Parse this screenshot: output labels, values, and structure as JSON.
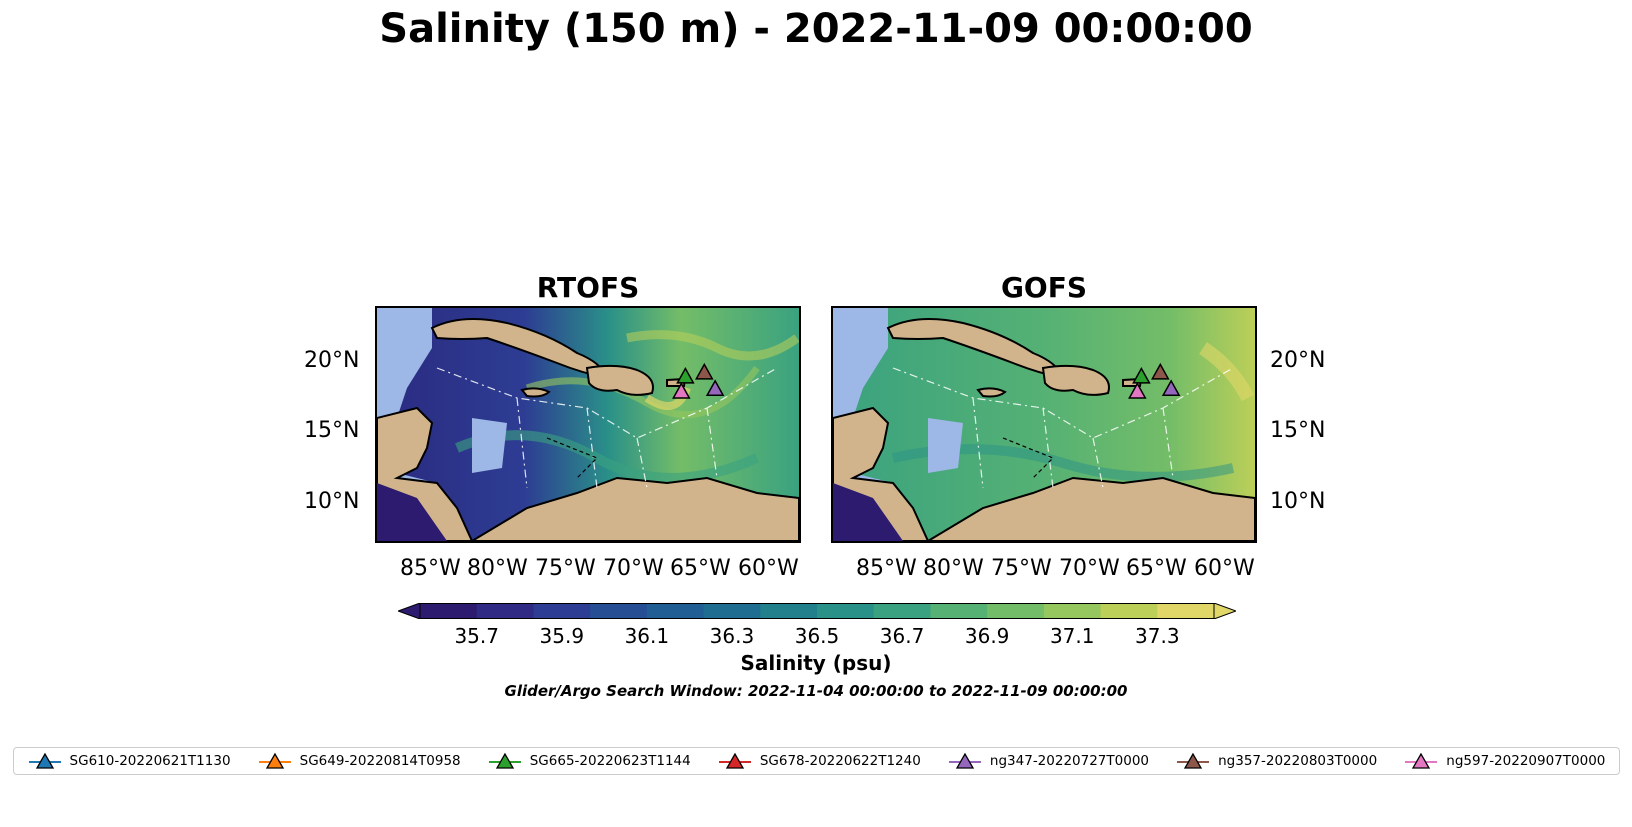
{
  "title": "Salinity (150 m) - 2022-11-09 00:00:00",
  "panels": [
    {
      "title": "RTOFS"
    },
    {
      "title": "GOFS"
    }
  ],
  "lat_labels": [
    "20°N",
    "15°N",
    "10°N"
  ],
  "lon_labels": [
    "85°W",
    "80°W",
    "75°W",
    "70°W",
    "65°W",
    "60°W"
  ],
  "colorbar": {
    "label": "Salinity (psu)",
    "ticks": [
      "35.7",
      "35.9",
      "36.1",
      "36.3",
      "36.5",
      "36.7",
      "36.9",
      "37.1",
      "37.3"
    ],
    "colors": [
      "#2c1b6e",
      "#312a85",
      "#2d3d93",
      "#264e95",
      "#215e94",
      "#1f6e92",
      "#22808d",
      "#2a9188",
      "#3aa280",
      "#55b174",
      "#74bd68",
      "#96c65e",
      "#bccf58",
      "#e0d768"
    ]
  },
  "search_window": "Glider/Argo Search Window: 2022-11-04 00:00:00 to 2022-11-09 00:00:00",
  "legend": [
    {
      "label": "SG610-20220621T1130",
      "color": "#1f77b4"
    },
    {
      "label": "SG649-20220814T0958",
      "color": "#ff7f0e"
    },
    {
      "label": "SG665-20220623T1144",
      "color": "#2ca02c"
    },
    {
      "label": "SG678-20220622T1240",
      "color": "#d62728"
    },
    {
      "label": "ng347-20220727T0000",
      "color": "#9467bd"
    },
    {
      "label": "ng357-20220803T0000",
      "color": "#8c564b"
    },
    {
      "label": "ng597-20220907T0000",
      "color": "#e377c2"
    }
  ],
  "markers": [
    {
      "name": "SG665",
      "lon": -66.2,
      "lat": 19.0,
      "color": "#2ca02c"
    },
    {
      "name": "ng357",
      "lon": -64.8,
      "lat": 19.3,
      "color": "#8c564b"
    },
    {
      "name": "ng347",
      "lon": -64.0,
      "lat": 18.1,
      "color": "#9467bd"
    },
    {
      "name": "ng597",
      "lon": -66.5,
      "lat": 17.9,
      "color": "#e377c2"
    }
  ],
  "map_extent": {
    "lon_min": -89,
    "lon_max": -57.8,
    "lat_min": 7,
    "lat_max": 24
  },
  "land_color": "#d2b48c",
  "shelf_color": "#9db8e6"
}
